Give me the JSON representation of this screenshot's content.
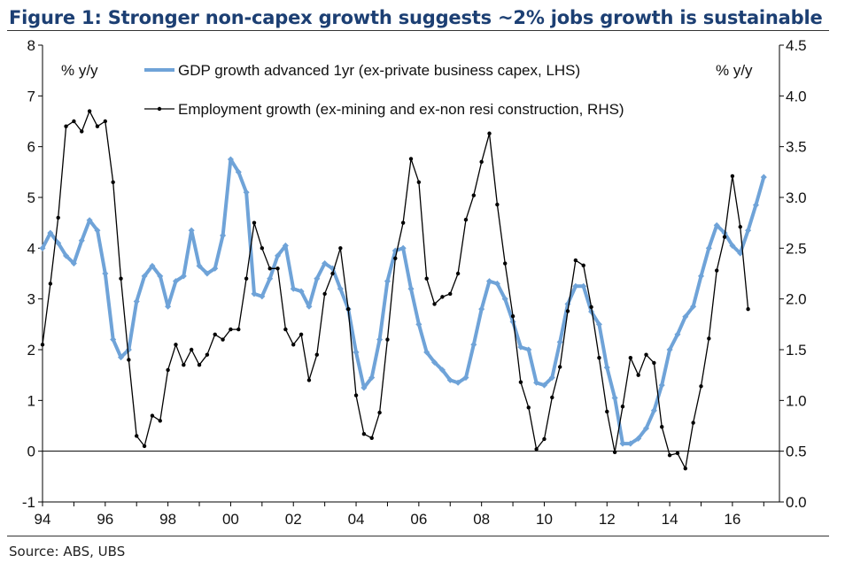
{
  "figure": {
    "title": "Figure 1: Stronger non-capex growth suggests ~2% jobs growth is sustainable",
    "source": "Source: ABS, UBS"
  },
  "colors": {
    "gdp": "#6fa3d8",
    "employment": "#000000",
    "title": "#1c3f73"
  },
  "chart_data": {
    "type": "line",
    "title": "Figure 1: Stronger non-capex growth suggests ~2% jobs growth is sustainable",
    "left_unit_label": "% y/y",
    "right_unit_label": "% y/y",
    "xlim": [
      1994,
      2017.5
    ],
    "ylim_left": [
      -1,
      8
    ],
    "ylim_right": [
      0.0,
      4.5
    ],
    "x_ticks": [
      1994,
      1996,
      1998,
      2000,
      2002,
      2004,
      2006,
      2008,
      2010,
      2012,
      2014,
      2016
    ],
    "x_tick_labels": [
      "94",
      "96",
      "98",
      "00",
      "02",
      "04",
      "06",
      "08",
      "10",
      "12",
      "14",
      "16"
    ],
    "left_ticks": [
      -1,
      0,
      1,
      2,
      3,
      4,
      5,
      6,
      7,
      8
    ],
    "left_tick_labels": [
      "-1",
      "0",
      "1",
      "2",
      "3",
      "4",
      "5",
      "6",
      "7",
      "8"
    ],
    "right_ticks": [
      0.0,
      0.5,
      1.0,
      1.5,
      2.0,
      2.5,
      3.0,
      3.5,
      4.0,
      4.5
    ],
    "right_tick_labels": [
      "0.0",
      "0.5",
      "1.0",
      "1.5",
      "2.0",
      "2.5",
      "3.0",
      "3.5",
      "4.0",
      "4.5"
    ],
    "legend_position": "top-center",
    "series": [
      {
        "name": "GDP growth advanced 1yr (ex-private business capex, LHS)",
        "axis": "left",
        "x_start": 1994.0,
        "x_step": 0.25,
        "values": [
          4.0,
          4.3,
          4.1,
          3.85,
          3.7,
          4.15,
          4.55,
          4.35,
          3.5,
          2.2,
          1.85,
          2.0,
          2.95,
          3.45,
          3.65,
          3.45,
          2.85,
          3.35,
          3.45,
          4.35,
          3.65,
          3.5,
          3.6,
          4.25,
          5.75,
          5.5,
          5.1,
          3.1,
          3.05,
          3.4,
          3.85,
          4.05,
          3.2,
          3.15,
          2.85,
          3.4,
          3.7,
          3.6,
          3.2,
          2.8,
          1.95,
          1.25,
          1.45,
          2.2,
          3.35,
          3.95,
          4.0,
          3.2,
          2.5,
          1.95,
          1.75,
          1.6,
          1.4,
          1.35,
          1.45,
          2.1,
          2.8,
          3.35,
          3.3,
          3.0,
          2.55,
          2.05,
          2.0,
          1.35,
          1.3,
          1.45,
          2.15,
          2.9,
          3.25,
          3.25,
          2.75,
          2.5,
          1.65,
          1.05,
          0.15,
          0.15,
          0.25,
          0.45,
          0.8,
          1.3,
          2.0,
          2.3,
          2.65,
          2.85,
          3.45,
          4.0,
          4.45,
          4.3,
          4.05,
          3.9,
          4.35,
          4.85,
          5.4
        ]
      },
      {
        "name": "Employment growth (ex-mining and ex-non resi construction, RHS)",
        "axis": "right",
        "x_start": 1994.0,
        "x_step": 0.25,
        "values": [
          1.55,
          2.15,
          2.8,
          3.7,
          3.75,
          3.65,
          3.85,
          3.7,
          3.75,
          3.15,
          2.2,
          1.4,
          0.65,
          0.55,
          0.85,
          0.8,
          1.3,
          1.55,
          1.35,
          1.5,
          1.35,
          1.45,
          1.65,
          1.6,
          1.7,
          1.7,
          2.2,
          2.75,
          2.5,
          2.3,
          2.3,
          1.7,
          1.55,
          1.65,
          1.2,
          1.45,
          2.05,
          2.25,
          2.5,
          1.9,
          1.05,
          0.67,
          0.63,
          0.88,
          1.6,
          2.4,
          2.75,
          3.38,
          3.15,
          2.2,
          1.95,
          2.02,
          2.05,
          2.25,
          2.78,
          3.02,
          3.35,
          3.63,
          2.93,
          2.35,
          1.83,
          1.18,
          0.93,
          0.52,
          0.62,
          1.03,
          1.33,
          1.88,
          2.38,
          2.33,
          1.92,
          1.42,
          0.89,
          0.49,
          0.94,
          1.42,
          1.25,
          1.45,
          1.37,
          0.74,
          0.46,
          0.48,
          0.33,
          0.78,
          1.14,
          1.61,
          2.28,
          2.61,
          3.21,
          2.71,
          1.9
        ]
      }
    ]
  }
}
